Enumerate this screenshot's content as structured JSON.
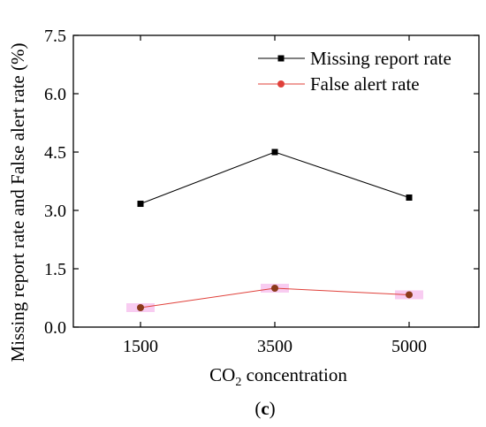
{
  "chart_data": {
    "type": "line",
    "categories": [
      "1500",
      "3500",
      "5000"
    ],
    "series": [
      {
        "name": "Missing report rate",
        "values": [
          3.17,
          4.5,
          3.33
        ],
        "color": "#000000",
        "marker": "square"
      },
      {
        "name": "False alert rate",
        "values": [
          0.5,
          1.0,
          0.83
        ],
        "color": "#e0403a",
        "marker": "circle",
        "marker_color": "#8b3a1a",
        "error_band_color": "#f7c6f0"
      }
    ],
    "ylim": [
      0,
      7.5
    ],
    "yticks": [
      "0.0",
      "1.5",
      "3.0",
      "4.5",
      "6.0",
      "7.5"
    ],
    "ylabel": "Missing report rate and False alert rate (%)",
    "xlabel_main": "CO",
    "xlabel_sub": "2",
    "xlabel_rest": " concentration",
    "legend_position": "top-right",
    "grid": false
  },
  "caption": {
    "open": "(",
    "letter": "c",
    "close": ")"
  }
}
